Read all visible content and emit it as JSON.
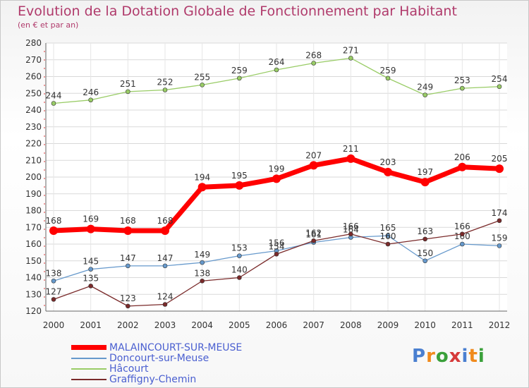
{
  "title": "Evolution de la Dotation Globale de Fonctionnement par Habitant",
  "subtitle": "(en € et par an)",
  "logo": "Proxiti",
  "chart_data": {
    "type": "line",
    "x": [
      "2000",
      "2001",
      "2002",
      "2003",
      "2004",
      "2005",
      "2006",
      "2007",
      "2008",
      "2009",
      "2010",
      "2011",
      "2012"
    ],
    "ylim": [
      120,
      280
    ],
    "yticks": [
      120,
      130,
      140,
      150,
      160,
      170,
      180,
      190,
      200,
      210,
      220,
      230,
      240,
      250,
      260,
      270,
      280
    ],
    "grid": true,
    "legend_position": "bottom-left",
    "series": [
      {
        "name": "MALAINCOURT-SUR-MEUSE",
        "color": "#ff0000",
        "values": [
          168,
          169,
          168,
          168,
          194,
          195,
          199,
          207,
          211,
          203,
          197,
          206,
          205
        ]
      },
      {
        "name": "Doncourt-sur-Meuse",
        "color": "#6699cc",
        "values": [
          138,
          145,
          147,
          147,
          149,
          153,
          156,
          161,
          164,
          165,
          150,
          160,
          159
        ]
      },
      {
        "name": "Hâcourt",
        "color": "#99cc66",
        "values": [
          244,
          246,
          251,
          252,
          255,
          259,
          264,
          268,
          271,
          259,
          249,
          253,
          254
        ]
      },
      {
        "name": "Graffigny-Chemin",
        "color": "#7a2a2a",
        "values": [
          127,
          135,
          123,
          124,
          138,
          140,
          154,
          162,
          166,
          160,
          163,
          166,
          174
        ]
      }
    ],
    "point_labels": {
      "MALAINCOURT-SUR-MEUSE": [
        "168",
        "169",
        "168",
        "168",
        "194",
        "195",
        "199",
        "207",
        "211",
        "203",
        "197",
        "206",
        "205"
      ],
      "Doncourt-sur-Meuse": [
        "138",
        "145",
        "147",
        "147",
        "149",
        "153",
        "156",
        "161",
        "164",
        "165",
        "150",
        "160",
        "159"
      ],
      "Hâcourt": [
        "244",
        "246",
        "251",
        "252",
        "255",
        "259",
        "264",
        "268",
        "271",
        "259",
        "249",
        "253",
        "254"
      ],
      "Graffigny-Chemin": [
        "127",
        "135",
        "123",
        "124",
        "138",
        "140",
        "154",
        "162",
        "166",
        "160",
        "163",
        "166",
        "174"
      ]
    }
  }
}
